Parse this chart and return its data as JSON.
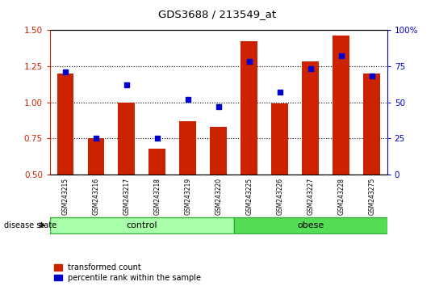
{
  "title": "GDS3688 / 213549_at",
  "samples": [
    "GSM243215",
    "GSM243216",
    "GSM243217",
    "GSM243218",
    "GSM243219",
    "GSM243220",
    "GSM243225",
    "GSM243226",
    "GSM243227",
    "GSM243228",
    "GSM243275"
  ],
  "transformed_count": [
    1.2,
    0.75,
    1.0,
    0.68,
    0.87,
    0.83,
    1.42,
    0.99,
    1.28,
    1.46,
    1.2
  ],
  "percentile_rank": [
    71,
    25,
    62,
    25,
    52,
    47,
    78,
    57,
    73,
    82,
    68
  ],
  "group": [
    "control",
    "control",
    "control",
    "control",
    "control",
    "control",
    "obese",
    "obese",
    "obese",
    "obese",
    "obese"
  ],
  "bar_color": "#cc2200",
  "dot_color": "#0000cc",
  "ylim_left": [
    0.5,
    1.5
  ],
  "ylim_right": [
    0,
    100
  ],
  "yticks_left": [
    0.5,
    0.75,
    1.0,
    1.25,
    1.5
  ],
  "yticks_right": [
    0,
    25,
    50,
    75,
    100
  ],
  "ytick_labels_right": [
    "0",
    "25",
    "50",
    "75",
    "100%"
  ],
  "control_color": "#aaffaa",
  "obese_color": "#55dd55",
  "tick_area_color": "#c8c8c8",
  "tick_divider_color": "#ffffff",
  "legend_red_label": "transformed count",
  "legend_blue_label": "percentile rank within the sample",
  "disease_state_label": "disease state",
  "control_label": "control",
  "obese_label": "obese",
  "n_control": 6,
  "n_obese": 5
}
